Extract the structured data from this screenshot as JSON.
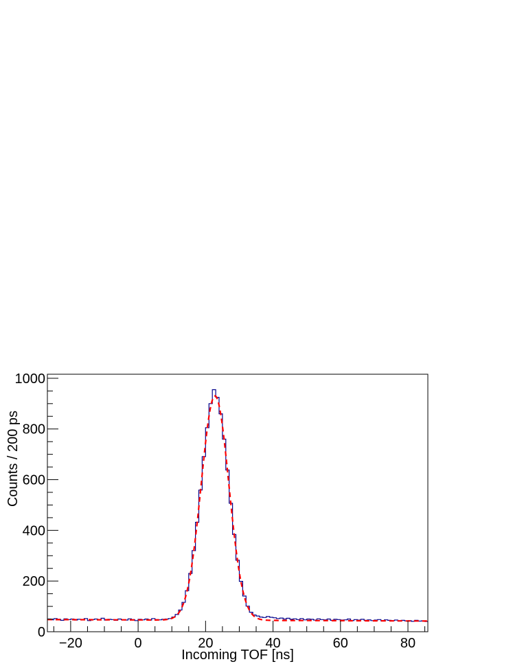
{
  "chart_data": {
    "type": "line",
    "title": "",
    "xlabel": "Incoming TOF [ns]",
    "ylabel": "Counts / 200 ps",
    "xlim": [
      -26.9,
      85.9
    ],
    "ylim": [
      0,
      1016
    ],
    "x_ticks": [
      -20,
      0,
      20,
      40,
      60,
      80
    ],
    "x_tick_labels": [
      "−20",
      "0",
      "20",
      "40",
      "60",
      "80"
    ],
    "y_ticks": [
      0,
      200,
      400,
      600,
      800,
      1000
    ],
    "y_tick_labels": [
      "0",
      "200",
      "400",
      "600",
      "800",
      "1000"
    ],
    "grid": false,
    "colors": {
      "histogram": "#00008b",
      "fit": "#ff0000",
      "frame": "#000000"
    },
    "series": [
      {
        "style": "step histogram",
        "x": [
          -26.5,
          -25.5,
          -24.5,
          -23.5,
          -22.5,
          -21.5,
          -20.5,
          -19.5,
          -18.5,
          -17.5,
          -16.5,
          -15.5,
          -14.5,
          -13.5,
          -12.5,
          -11.5,
          -10.5,
          -9.5,
          -8.5,
          -7.5,
          -6.5,
          -5.5,
          -4.5,
          -3.5,
          -2.5,
          -1.5,
          -0.5,
          0.5,
          1.5,
          2.5,
          3.5,
          4.5,
          5.5,
          6.5,
          7.5,
          8.5,
          9.5,
          10.5,
          11.5,
          12.5,
          13.5,
          14.5,
          15.5,
          16.5,
          17.5,
          18.5,
          19.5,
          20.5,
          21.5,
          22.5,
          23.5,
          24.5,
          25.5,
          26.5,
          27.5,
          28.5,
          29.5,
          30.5,
          31.5,
          32.5,
          33.5,
          34.5,
          35.5,
          36.5,
          37.5,
          38.5,
          39.5,
          40.5,
          41.5,
          42.5,
          43.5,
          44.5,
          45.5,
          46.5,
          47.5,
          48.5,
          49.5,
          50.5,
          51.5,
          52.5,
          53.5,
          54.5,
          55.5,
          56.5,
          57.5,
          58.5,
          59.5,
          60.5,
          61.5,
          62.5,
          63.5,
          64.5,
          65.5,
          66.5,
          67.5,
          68.5,
          69.5,
          70.5,
          71.5,
          72.5,
          73.5,
          74.5,
          75.5,
          76.5,
          77.5,
          78.5,
          79.5,
          80.5,
          81.5,
          82.5,
          83.5,
          84.5,
          85.5
        ],
        "values": [
          50,
          47,
          52,
          49,
          45,
          51,
          48,
          50,
          46,
          49,
          47,
          52,
          44,
          48,
          50,
          47,
          53,
          46,
          49,
          48,
          45,
          50,
          47,
          46,
          51,
          48,
          44,
          49,
          47,
          50,
          46,
          52,
          48,
          47,
          49,
          50,
          52,
          58,
          68,
          86,
          116,
          162,
          230,
          320,
          432,
          559,
          691,
          805,
          900,
          955,
          925,
          860,
          760,
          638,
          507,
          384,
          282,
          199,
          141,
          101,
          77,
          66,
          62,
          58,
          56,
          60,
          57,
          55,
          52,
          54,
          50,
          53,
          49,
          51,
          48,
          52,
          47,
          50,
          49,
          46,
          51,
          48,
          47,
          50,
          45,
          49,
          48,
          46,
          47,
          50,
          44,
          48,
          46,
          49,
          45,
          47,
          44,
          46,
          48,
          43,
          47,
          45,
          44,
          46,
          42,
          45,
          43,
          44,
          41,
          45,
          42,
          43,
          40
        ]
      },
      {
        "style": "dashed fit",
        "function": "gaussian + linear",
        "amplitude": 885,
        "mean": 22.8,
        "sigma": 4.1,
        "p0": 46.6,
        "p1": -0.05
      }
    ]
  }
}
